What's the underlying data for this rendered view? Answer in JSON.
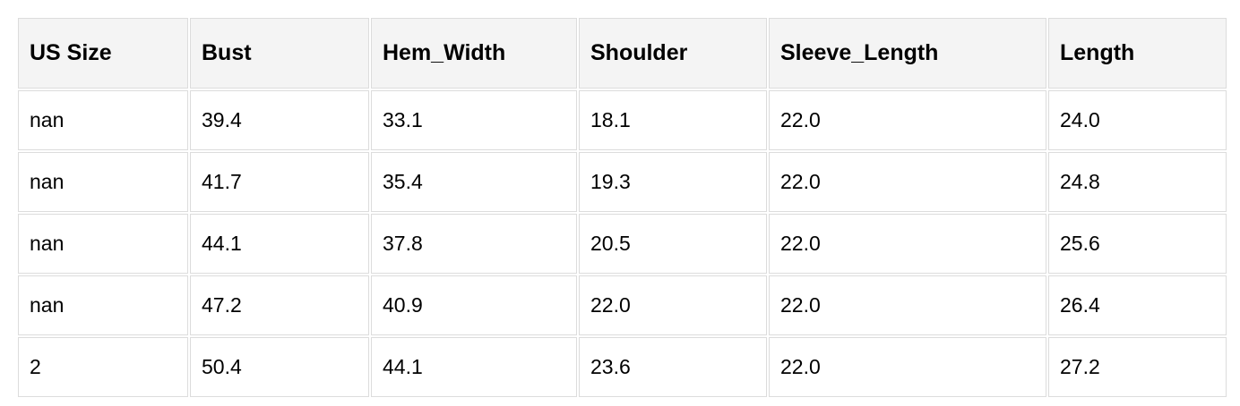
{
  "table": {
    "headers": [
      "US Size",
      "Bust",
      "Hem_Width",
      "Shoulder",
      "Sleeve_Length",
      "Length"
    ],
    "rows": [
      [
        "nan",
        "39.4",
        "33.1",
        "18.1",
        "22.0",
        "24.0"
      ],
      [
        "nan",
        "41.7",
        "35.4",
        "19.3",
        "22.0",
        "24.8"
      ],
      [
        "nan",
        "44.1",
        "37.8",
        "20.5",
        "22.0",
        "25.6"
      ],
      [
        "nan",
        "47.2",
        "40.9",
        "22.0",
        "22.0",
        "26.4"
      ],
      [
        "2",
        "50.4",
        "44.1",
        "23.6",
        "22.0",
        "27.2"
      ]
    ]
  },
  "colors": {
    "header_bg": "#f4f4f4",
    "border": "#dcdcdc"
  }
}
